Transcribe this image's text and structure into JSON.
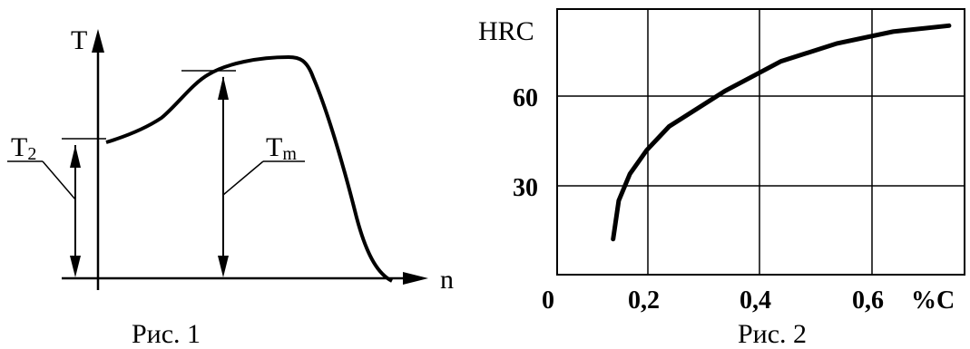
{
  "figure1": {
    "y_axis_label": "T",
    "x_axis_label": "n",
    "label_t2": "T",
    "label_t2_sub": "2",
    "label_tm": "T",
    "label_tm_sub": "m",
    "caption": "Рис. 1"
  },
  "figure2": {
    "caption": "Рис. 2",
    "chart_data": {
      "type": "line",
      "ylabel": "HRC",
      "xlabel": "%C",
      "x_ticks": [
        "0",
        "0,2",
        "0,4",
        "0,6"
      ],
      "y_ticks": [
        "30",
        "60"
      ],
      "xlim": [
        0,
        0.75
      ],
      "ylim": [
        0,
        90
      ],
      "grid": true,
      "series": [
        {
          "x": [
            0.1,
            0.11,
            0.13,
            0.16,
            0.2,
            0.25,
            0.3,
            0.35,
            0.4,
            0.5,
            0.6,
            0.7
          ],
          "y": [
            12,
            25,
            34,
            42,
            50,
            56,
            62,
            67,
            72,
            78,
            82,
            84
          ]
        }
      ]
    }
  }
}
